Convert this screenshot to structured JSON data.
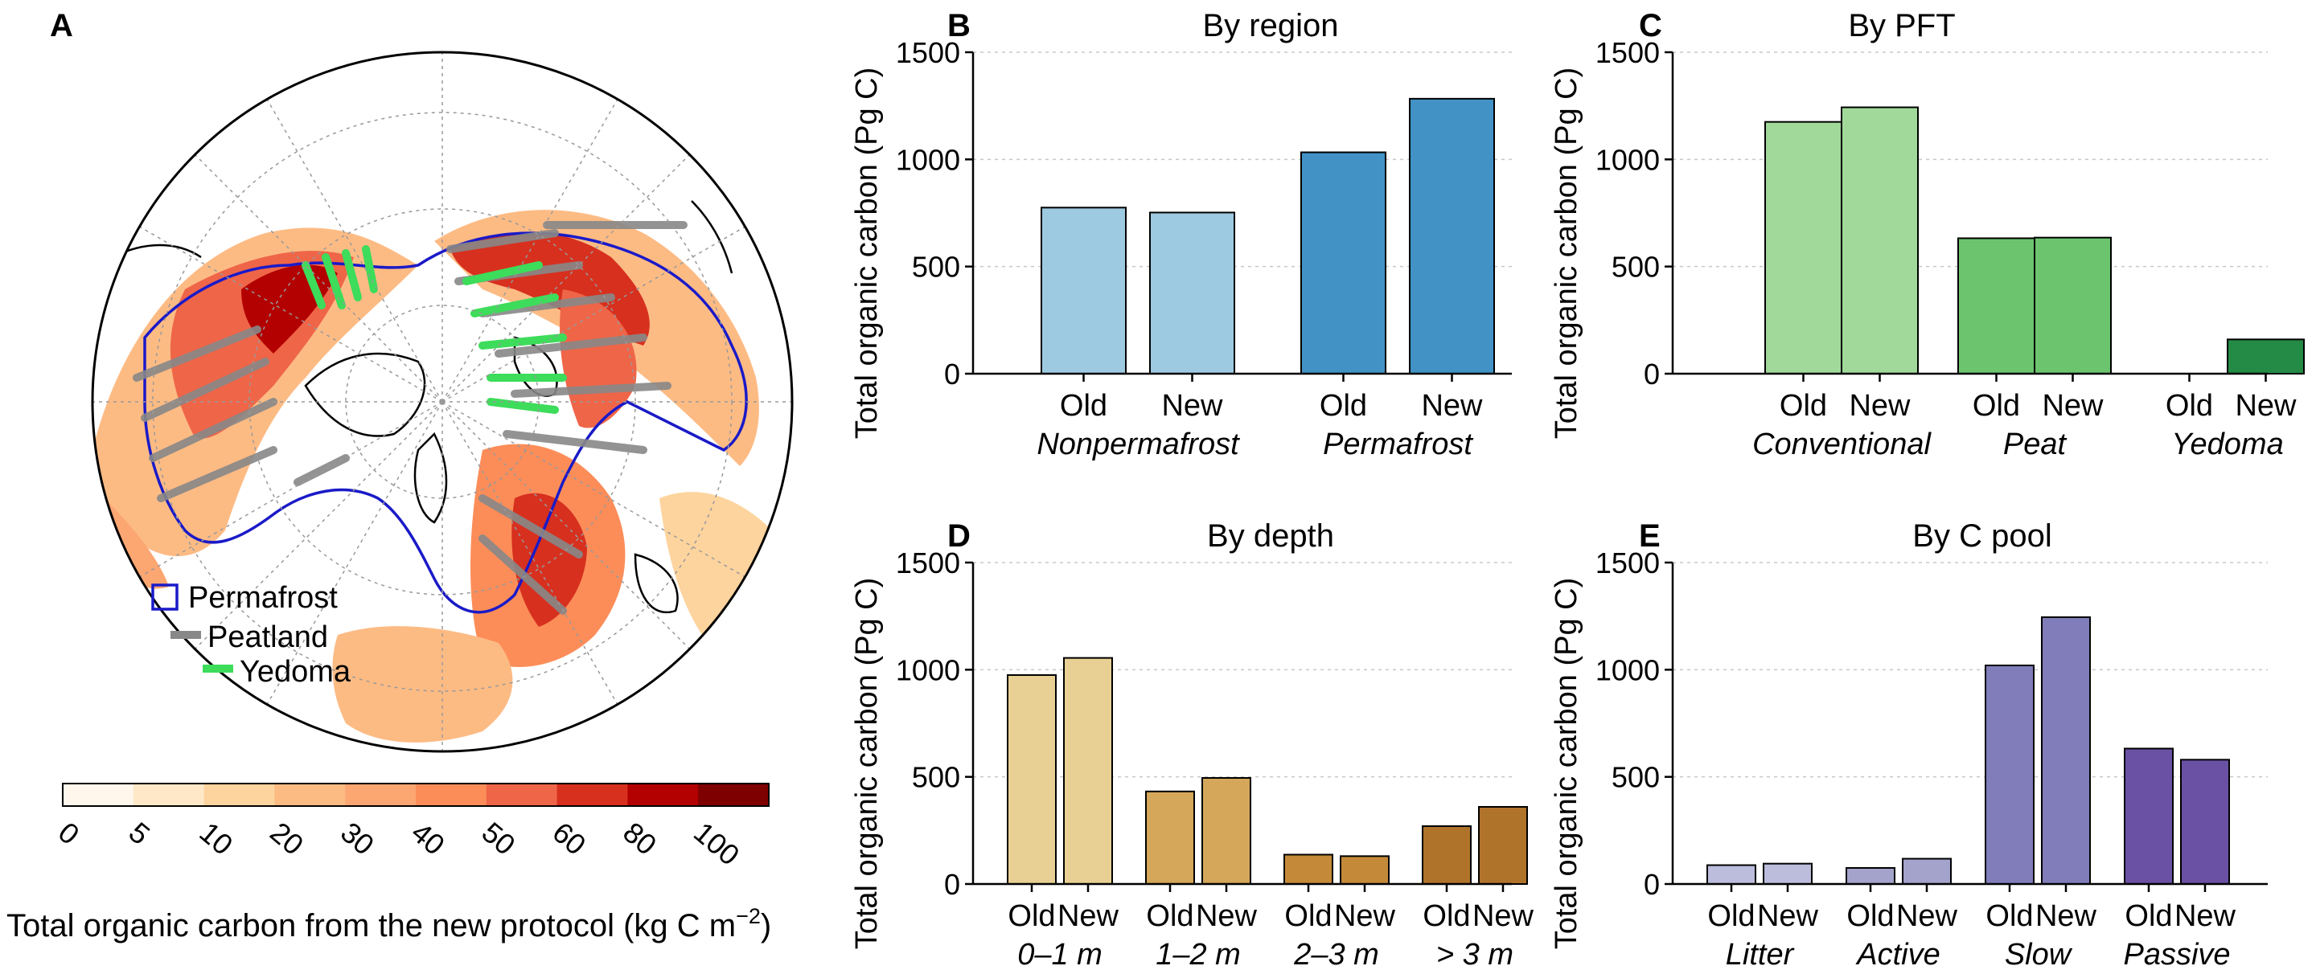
{
  "map": {
    "panel_label": "A",
    "legend": [
      {
        "label": "Permafrost",
        "icon": "square-outline-icon",
        "color": "#1a1ac8"
      },
      {
        "label": "Peatland",
        "icon": "gray-line-icon",
        "color": "#888888"
      },
      {
        "label": "Yedoma",
        "icon": "green-line-icon",
        "color": "#3ddc5a"
      }
    ],
    "colorbar": {
      "ticks": [
        "0",
        "5",
        "10",
        "20",
        "30",
        "40",
        "50",
        "60",
        "80",
        "100"
      ],
      "colors": [
        "#fff7ec",
        "#fee8c8",
        "#fdd49e",
        "#fdbb84",
        "#fca672",
        "#fc8d59",
        "#ef6548",
        "#d7301f",
        "#b30000",
        "#7f0000"
      ],
      "label_main": "Total organic carbon from the new protocol (kg C m",
      "label_sup": "−2",
      "label_end": ")"
    }
  },
  "chart_data": [
    {
      "panel_label": "B",
      "type": "bar",
      "title": "By region",
      "ylabel": "Total organic carbon (Pg C)",
      "ylim": [
        0,
        1500
      ],
      "yticks": [
        "0",
        "500",
        "1000",
        "1500"
      ],
      "grid": true,
      "groups": [
        {
          "name": "Nonpermafrost",
          "bars": [
            {
              "label": "Old",
              "value": 775
            },
            {
              "label": "New",
              "value": 752
            }
          ],
          "color": "#9ecae1"
        },
        {
          "name": "Permafrost",
          "bars": [
            {
              "label": "Old",
              "value": 1033
            },
            {
              "label": "New",
              "value": 1283
            }
          ],
          "color": "#4292c6"
        }
      ]
    },
    {
      "panel_label": "C",
      "type": "bar",
      "title": "By PFT",
      "ylabel": "Total organic carbon (Pg C)",
      "ylim": [
        0,
        1500
      ],
      "yticks": [
        "0",
        "500",
        "1000",
        "1500"
      ],
      "grid": true,
      "groups": [
        {
          "name": "Conventional",
          "bars": [
            {
              "label": "Old",
              "value": 1175
            },
            {
              "label": "New",
              "value": 1243
            }
          ],
          "color": "#a1d99b"
        },
        {
          "name": "Peat",
          "bars": [
            {
              "label": "Old",
              "value": 632
            },
            {
              "label": "New",
              "value": 635
            }
          ],
          "color": "#6cc46f"
        },
        {
          "name": "Yedoma",
          "bars": [
            {
              "label": "Old",
              "value": 0
            },
            {
              "label": "New",
              "value": 160
            }
          ],
          "color": "#238b45"
        }
      ]
    },
    {
      "panel_label": "D",
      "type": "bar",
      "title": "By depth",
      "ylabel": "Total organic carbon (Pg C)",
      "ylim": [
        0,
        1500
      ],
      "yticks": [
        "0",
        "500",
        "1000",
        "1500"
      ],
      "grid": true,
      "groups": [
        {
          "name": "0–1 m",
          "bars": [
            {
              "label": "Old",
              "value": 975
            },
            {
              "label": "New",
              "value": 1055
            }
          ],
          "color": "#e8d094"
        },
        {
          "name": "1–2 m",
          "bars": [
            {
              "label": "Old",
              "value": 432
            },
            {
              "label": "New",
              "value": 495
            }
          ],
          "color": "#d4a75a"
        },
        {
          "name": "2–3 m",
          "bars": [
            {
              "label": "Old",
              "value": 137
            },
            {
              "label": "New",
              "value": 130
            }
          ],
          "color": "#c48a3a"
        },
        {
          "name": "> 3 m",
          "bars": [
            {
              "label": "Old",
              "value": 270
            },
            {
              "label": "New",
              "value": 360
            }
          ],
          "color": "#b0732a"
        }
      ]
    },
    {
      "panel_label": "E",
      "type": "bar",
      "title": "By C pool",
      "ylabel": "Total organic carbon (Pg C)",
      "ylim": [
        0,
        1500
      ],
      "yticks": [
        "0",
        "500",
        "1000",
        "1500"
      ],
      "grid": true,
      "groups": [
        {
          "name": "Litter",
          "bars": [
            {
              "label": "Old",
              "value": 88
            },
            {
              "label": "New",
              "value": 95
            }
          ],
          "color": "#bcbddc"
        },
        {
          "name": "Active",
          "bars": [
            {
              "label": "Old",
              "value": 75
            },
            {
              "label": "New",
              "value": 118
            }
          ],
          "color": "#a3a3cc"
        },
        {
          "name": "Slow",
          "bars": [
            {
              "label": "Old",
              "value": 1020
            },
            {
              "label": "New",
              "value": 1245
            }
          ],
          "color": "#807dba"
        },
        {
          "name": "Passive",
          "bars": [
            {
              "label": "Old",
              "value": 632
            },
            {
              "label": "New",
              "value": 580
            }
          ],
          "color": "#6a51a3"
        }
      ]
    }
  ]
}
